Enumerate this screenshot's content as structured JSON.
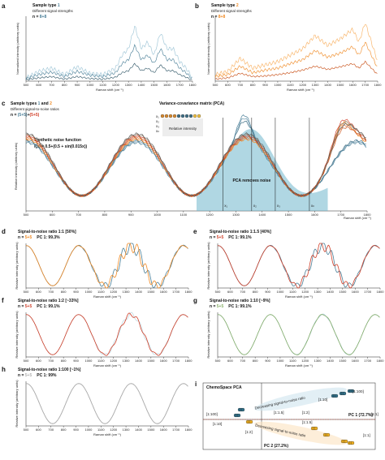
{
  "colors": {
    "blue": "#4a7f98",
    "blue_light": "#9cc4d6",
    "blue_fill": "#6fb7cc",
    "orange": "#f08a24",
    "orange_dark": "#c84e14",
    "red": "#d0402a",
    "green": "#88b06a",
    "gray": "#9a9a9a",
    "black": "#222222"
  },
  "x_axis_label": "Raman shift (cm⁻¹)",
  "y_axis_label": "Relative intensity (arbitrary units)",
  "y_axis_label_norm": "Normalized intensity (arbitrary units)",
  "x_ticks": [
    "500",
    "600",
    "700",
    "800",
    "900",
    "1000",
    "1100",
    "1200",
    "1300",
    "1400",
    "1500",
    "1600",
    "1700",
    "1800"
  ],
  "panels": {
    "a": {
      "letter": "a",
      "title_prefix": "Sample type ",
      "title_num": "1",
      "subtitle": "Different signal strengths",
      "n_prefix": "n = ",
      "n_value": "8+8"
    },
    "b": {
      "letter": "b",
      "title_prefix": "Sample type ",
      "title_num": "2",
      "subtitle": "Different signal strengths",
      "n_prefix": "n = ",
      "n_value": "8+8"
    },
    "c": {
      "letter": "c",
      "title_prefix": "Sample types ",
      "title_num1": "1",
      "title_and": " and ",
      "title_num2": "2",
      "subtitle": "Different signal-to-noise ratios",
      "n_prefix": "n = ",
      "n_value1": "(5+5)",
      "n_plus": "+",
      "n_value2": "(5+5)",
      "noise_title": "Synthetic noise function",
      "noise_formula": "f(x) = 0.5+(0.5 + sin(0.015x))",
      "vcm_title": "Variance-covariance matrix (PCA)",
      "relative_intensity": "Relative intensity",
      "pca_label": "PCA removes noise",
      "x_labels": [
        "x₁",
        "x₂",
        "x₃",
        "xₙ"
      ],
      "row_labels": [
        "x₁",
        "x₂",
        "x₃",
        "xₙ"
      ]
    },
    "d": {
      "letter": "d",
      "title": "Signal-to-noise ratio 1:1",
      "pct": "[50%]",
      "n_prefix": "n = ",
      "n_value": "5+5",
      "pc": "PC 1: 99.3%"
    },
    "e": {
      "letter": "e",
      "title": "Signal-to-noise ratio 1:1.5",
      "pct": "[40%]",
      "n_prefix": "n = ",
      "n_value": "5+5",
      "pc": "PC 1: 99.1%"
    },
    "f": {
      "letter": "f",
      "title": "Signal-to-noise ratio 1:2",
      "pct": "[~33%]",
      "n_prefix": "n = ",
      "n_value": "5+5",
      "pc": "PC 1: 99.1%"
    },
    "g": {
      "letter": "g",
      "title": "Signal-to-noise ratio 1:10",
      "pct": "[~9%]",
      "n_prefix": "n = ",
      "n_value": "5+5",
      "pc": "PC 1: 99.1%"
    },
    "h": {
      "letter": "h",
      "title": "Signal-to-noise ratio 1:100",
      "pct": "[~1%]",
      "n_prefix": "n = ",
      "n_value": "5+5",
      "pc": "PC 1: 99%"
    },
    "i": {
      "letter": "i",
      "title": "ChemoSpace PCA",
      "pc1": "PC 1 (72.7%)",
      "pc2": "PC 2 (27.2%)",
      "arrow_top": "Decreasing signal-to-noise ratio",
      "arrow_bottom": "Decreasing signal-to-noise ratio",
      "labels": [
        "[1:100]",
        "[1:10]",
        "[1:1]",
        "[1:1.5]",
        "[1:2]",
        "[1:100]",
        "[1:10]",
        "[1:2]",
        "[1:1.5]",
        "[1:1]"
      ]
    }
  },
  "chart_data": [
    {
      "panel": "a",
      "type": "line",
      "xlim": [
        500,
        1800
      ],
      "ylim": [
        0,
        1
      ],
      "series": [
        {
          "x": [
            500,
            600,
            700,
            800,
            900,
            1000,
            1100,
            1200,
            1250,
            1300,
            1350,
            1400,
            1450,
            1500,
            1550,
            1600,
            1650,
            1700,
            1750,
            1800
          ],
          "y": [
            0.05,
            0.15,
            0.2,
            0.1,
            0.22,
            0.12,
            0.1,
            0.2,
            0.4,
            0.5,
            0.85,
            0.5,
            0.6,
            0.4,
            0.75,
            0.5,
            0.5,
            0.3,
            0.2,
            0.05
          ]
        },
        {
          "x": [
            500,
            600,
            700,
            800,
            900,
            1000,
            1100,
            1200,
            1250,
            1300,
            1350,
            1400,
            1450,
            1500,
            1550,
            1600,
            1650,
            1700,
            1750,
            1800
          ],
          "y": [
            0.04,
            0.1,
            0.14,
            0.07,
            0.15,
            0.09,
            0.07,
            0.13,
            0.27,
            0.33,
            0.55,
            0.33,
            0.4,
            0.27,
            0.5,
            0.33,
            0.33,
            0.2,
            0.13,
            0.03
          ]
        },
        {
          "x": [
            500,
            600,
            700,
            800,
            900,
            1000,
            1100,
            1200,
            1250,
            1300,
            1350,
            1400,
            1450,
            1500,
            1550,
            1600,
            1650,
            1700,
            1750,
            1800
          ],
          "y": [
            0.02,
            0.05,
            0.07,
            0.03,
            0.07,
            0.04,
            0.03,
            0.06,
            0.13,
            0.16,
            0.27,
            0.16,
            0.2,
            0.13,
            0.25,
            0.16,
            0.16,
            0.1,
            0.06,
            0.01
          ]
        }
      ]
    },
    {
      "panel": "b",
      "type": "line",
      "xlim": [
        500,
        1800
      ],
      "ylim": [
        0,
        1
      ],
      "series": [
        {
          "x": [
            500,
            600,
            700,
            800,
            900,
            1000,
            1100,
            1200,
            1300,
            1400,
            1500,
            1600,
            1650,
            1700,
            1750,
            1800
          ],
          "y": [
            0.1,
            0.15,
            0.35,
            0.2,
            0.25,
            0.3,
            0.4,
            0.5,
            0.7,
            0.55,
            0.65,
            0.8,
            0.6,
            0.9,
            0.6,
            0.3
          ]
        },
        {
          "x": [
            500,
            600,
            700,
            800,
            900,
            1000,
            1100,
            1200,
            1300,
            1400,
            1500,
            1600,
            1650,
            1700,
            1750,
            1800
          ],
          "y": [
            0.07,
            0.1,
            0.23,
            0.13,
            0.17,
            0.2,
            0.27,
            0.33,
            0.47,
            0.37,
            0.43,
            0.53,
            0.4,
            0.6,
            0.4,
            0.2
          ]
        },
        {
          "x": [
            500,
            600,
            700,
            800,
            900,
            1000,
            1100,
            1200,
            1300,
            1400,
            1500,
            1600,
            1650,
            1700,
            1750,
            1800
          ],
          "y": [
            0.03,
            0.05,
            0.12,
            0.07,
            0.08,
            0.1,
            0.13,
            0.17,
            0.23,
            0.18,
            0.22,
            0.27,
            0.2,
            0.3,
            0.2,
            0.1
          ]
        }
      ]
    }
  ]
}
